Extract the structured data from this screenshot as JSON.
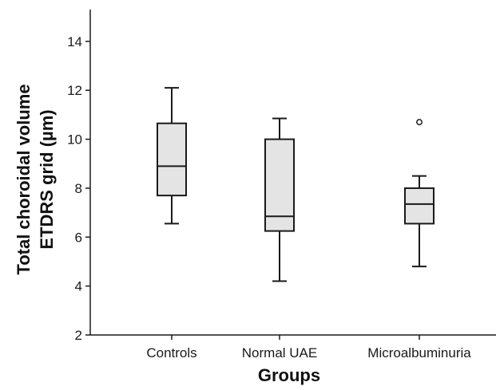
{
  "chart_data": {
    "type": "box",
    "xlabel": "Groups",
    "ylabel_lines": [
      "Total choroidal volume",
      "ETDRS grid (µm)"
    ],
    "ylim": [
      2,
      15.3
    ],
    "yticks": [
      2,
      4,
      6,
      8,
      10,
      12,
      14
    ],
    "categories": [
      "Controls",
      "Normal UAE",
      "Microalbuminuria"
    ],
    "boxes": [
      {
        "category": "Controls",
        "whisker_low": 6.55,
        "q1": 7.7,
        "median": 8.9,
        "q3": 10.65,
        "whisker_high": 12.1,
        "outliers": []
      },
      {
        "category": "Normal UAE",
        "whisker_low": 4.2,
        "q1": 6.25,
        "median": 6.85,
        "q3": 10.0,
        "whisker_high": 10.85,
        "outliers": []
      },
      {
        "category": "Microalbuminuria",
        "whisker_low": 4.8,
        "q1": 6.55,
        "median": 7.35,
        "q3": 8.0,
        "whisker_high": 8.5,
        "outliers": [
          10.7
        ]
      }
    ],
    "grid": false,
    "legend": "none",
    "colors": {
      "box_fill": "#e4e4e4",
      "stroke": "#1a1a1a"
    }
  }
}
